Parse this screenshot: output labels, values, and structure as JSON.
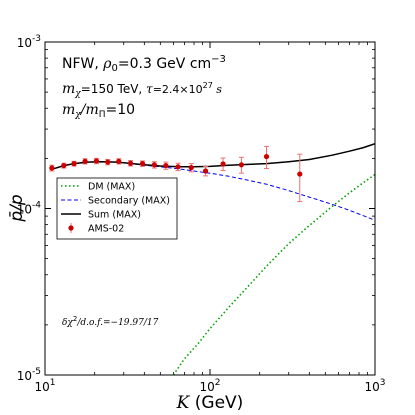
{
  "chart_data": {
    "type": "line",
    "xlabel": "K (GeV)",
    "ylabel": "p̄/p",
    "xscale": "log",
    "yscale": "log",
    "xlim": [
      10,
      1000
    ],
    "ylim": [
      1e-05,
      0.001
    ],
    "x_ticks": [
      {
        "value": 10,
        "base": "10",
        "exp": "1"
      },
      {
        "value": 100,
        "base": "10",
        "exp": "2"
      },
      {
        "value": 1000,
        "base": "10",
        "exp": "3"
      }
    ],
    "y_ticks": [
      {
        "value": 1e-05,
        "base": "10",
        "exp": "-5"
      },
      {
        "value": 0.0001,
        "base": "10",
        "exp": "-4"
      },
      {
        "value": 0.001,
        "base": "10",
        "exp": "-3"
      }
    ],
    "annotations": {
      "line1_main": "NFW, ",
      "line1_rho": "ρ",
      "line1_rho_sub": "0",
      "line1_rest": "=0.3 GeV cm",
      "line1_sup": "−3",
      "line2_m": "m",
      "line2_m_sub": "χ",
      "line2_eq": "=150 TeV, ",
      "line2_tau": "τ",
      "line2_tau_eq": "=2.4×10",
      "line2_tau_sup": "27",
      "line2_s": " s",
      "line3_m": "m",
      "line3_m_sub": "χ",
      "line3_slash": "/m",
      "line3_sub2": "Π",
      "line3_eq": "=10",
      "chi2_delta": "δχ",
      "chi2_sup": "2",
      "chi2_rest": "/d.o.f.=−19.97/17"
    },
    "legend": {
      "placement": "center-left",
      "entries": [
        "DM (MAX)",
        "Secondary (MAX)",
        "Sum (MAX)",
        "AMS-02"
      ]
    },
    "series": [
      {
        "name": "DM (MAX)",
        "style": "dotted",
        "color": "#00a000",
        "x": [
          60,
          70,
          85,
          100,
          130,
          170,
          220,
          300,
          400,
          550,
          700,
          850,
          1000
        ],
        "y": [
          1e-05,
          1.25e-05,
          1.55e-05,
          1.9e-05,
          2.55e-05,
          3.4e-05,
          4.5e-05,
          6.15e-05,
          7.9e-05,
          0.000103,
          0.000124,
          0.000143,
          0.00016
        ]
      },
      {
        "name": "Secondary (MAX)",
        "style": "dashed",
        "color": "#0000ee",
        "x": [
          11,
          13,
          15,
          18,
          22,
          27,
          32,
          40,
          50,
          65,
          80,
          100,
          130,
          170,
          220,
          300,
          400,
          550,
          700,
          850,
          1000
        ],
        "y": [
          0.000172,
          0.000181,
          0.000186,
          0.00019,
          0.000191,
          0.00019,
          0.000187,
          0.000182,
          0.000178,
          0.000173,
          0.000168,
          0.000163,
          0.000156,
          0.000148,
          0.00014,
          0.000128,
          0.000117,
          0.000106,
          9.75e-05,
          9.05e-05,
          8.5e-05
        ]
      },
      {
        "name": "Sum (MAX)",
        "style": "solid",
        "color": "#000000",
        "x": [
          11,
          13,
          15,
          18,
          22,
          27,
          32,
          40,
          50,
          65,
          80,
          100,
          130,
          170,
          220,
          300,
          400,
          550,
          700,
          850,
          1000
        ],
        "y": [
          0.000172,
          0.000181,
          0.000186,
          0.00019,
          0.000191,
          0.00019,
          0.000187,
          0.000183,
          0.00018,
          0.000178,
          0.000178,
          0.000179,
          0.000182,
          0.000184,
          0.000186,
          0.000191,
          0.000197,
          0.000209,
          0.000221,
          0.000232,
          0.000245
        ]
      },
      {
        "name": "AMS-02",
        "style": "errorbar",
        "color": "#cc0000",
        "errcolor": "#f07070",
        "x": [
          11,
          13,
          15,
          17.5,
          20.5,
          24,
          28,
          33,
          39,
          46,
          54,
          64,
          77,
          94,
          120,
          155,
          220,
          350
        ],
        "y": [
          0.000175,
          0.000181,
          0.000186,
          0.000192,
          0.000193,
          0.00019,
          0.000192,
          0.000187,
          0.000186,
          0.000183,
          0.000181,
          0.000178,
          0.000176,
          0.000168,
          0.000185,
          0.000183,
          0.000205,
          0.000161
        ],
        "ylo": [
          0.000168,
          0.000175,
          0.00018,
          0.000185,
          0.000186,
          0.000183,
          0.000185,
          0.00018,
          0.000179,
          0.000175,
          0.000172,
          0.000169,
          0.000166,
          0.000157,
          0.000169,
          0.000163,
          0.000174,
          0.00011
        ],
        "yhi": [
          0.000182,
          0.000187,
          0.000192,
          0.000199,
          0.0002,
          0.000197,
          0.000199,
          0.000194,
          0.000193,
          0.000191,
          0.00019,
          0.000187,
          0.000186,
          0.000179,
          0.000201,
          0.000203,
          0.000236,
          0.000212
        ]
      }
    ]
  }
}
